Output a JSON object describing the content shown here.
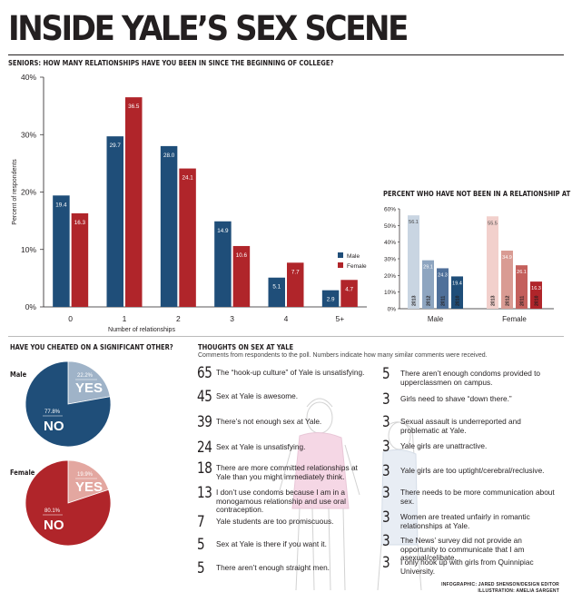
{
  "title": "INSIDE YALE’S SEX SCENE",
  "relationships_chart": {
    "heading": "SENIORS: HOW MANY RELATIONSHIPS HAVE YOU BEEN IN SINCE THE BEGINNING OF COLLEGE?",
    "legend": [
      "Male",
      "Female"
    ]
  },
  "not_in_relationship_chart": {
    "heading": "PERCENT WHO HAVE NOT BEEN IN A RELATIONSHIP AT YALE"
  },
  "cheated": {
    "heading": "HAVE YOU CHEATED ON A SIGNIFICANT OTHER?",
    "groups": [
      {
        "label": "Male",
        "yes_pct": "22.2%",
        "no_pct": "77.8%",
        "yes": "YES",
        "no": "NO"
      },
      {
        "label": "Female",
        "yes_pct": "19.9%",
        "no_pct": "80.1%",
        "yes": "YES",
        "no": "NO"
      }
    ]
  },
  "thoughts": {
    "heading": "THOUGHTS ON SEX AT YALE",
    "subheading": "Comments from respondents to the poll. Numbers indicate how many similar comments were received.",
    "left": [
      {
        "count": "65",
        "text": "The “hook-up culture” of Yale is unsatisfying."
      },
      {
        "count": "45",
        "text": "Sex at Yale is awesome."
      },
      {
        "count": "39",
        "text": "There’s not enough sex at Yale."
      },
      {
        "count": "24",
        "text": "Sex at Yale is unsatisfying."
      },
      {
        "count": "18",
        "text": "There are more committed relationships at Yale than you might immediately think."
      },
      {
        "count": "13",
        "text": "I don’t use condoms because I am in a monogamous relationship and use oral contraception."
      },
      {
        "count": "7",
        "text": "Yale students are too promiscuous."
      },
      {
        "count": "5",
        "text": "Sex at Yale is there if you want it."
      },
      {
        "count": "5",
        "text": "There aren’t enough straight men."
      }
    ],
    "right": [
      {
        "count": "5",
        "text": "There aren’t enough condoms provided to upperclassmen on campus."
      },
      {
        "count": "3",
        "text": "Girls need to shave “down there.”"
      },
      {
        "count": "3",
        "text": "Sexual assault is underreported and problematic at Yale."
      },
      {
        "count": "3",
        "text": "Yale girls are unattractive."
      },
      {
        "count": "3",
        "text": "Yale girls are too uptight/cerebral/reclusive."
      },
      {
        "count": "3",
        "text": "There needs to be more communication about sex."
      },
      {
        "count": "3",
        "text": "Women are treated unfairly in romantic relationships at Yale."
      },
      {
        "count": "3",
        "text": "The News’ survey did not provide an opportunity to communicate that I am asexual/celibate."
      },
      {
        "count": "3",
        "text": "I only hook up with girls from Quinnipiac University."
      }
    ]
  },
  "credits": {
    "line1": "INFOGRAPHIC: JARED SHENSON/DESIGN EDITOR",
    "line2": "ILLUSTRATION: AMELIA SARGENT"
  },
  "colors": {
    "male": "#1f4e79",
    "female": "#b0252a",
    "male_light": "#9fb3c8",
    "female_light": "#e3a7a0"
  },
  "chart_data": [
    {
      "type": "bar",
      "title": "SENIORS: HOW MANY RELATIONSHIPS HAVE YOU BEEN IN SINCE THE BEGINNING OF COLLEGE?",
      "xlabel": "Number of relationships",
      "ylabel": "Percent of respondents",
      "categories": [
        "0",
        "1",
        "2",
        "3",
        "4",
        "5+"
      ],
      "ylim": [
        0,
        40
      ],
      "yticks": [
        "0%",
        "10%",
        "20%",
        "30%",
        "40%"
      ],
      "series": [
        {
          "name": "Male",
          "values": [
            19.4,
            29.7,
            28.0,
            14.9,
            5.1,
            2.9
          ]
        },
        {
          "name": "Female",
          "values": [
            16.3,
            36.5,
            24.1,
            10.6,
            7.7,
            4.7
          ]
        }
      ],
      "legend": "right"
    },
    {
      "type": "bar",
      "title": "PERCENT WHO HAVE NOT BEEN IN A RELATIONSHIP AT YALE",
      "categories": [
        "Male",
        "Female"
      ],
      "ylim": [
        0,
        60
      ],
      "yticks": [
        "0%",
        "10%",
        "20%",
        "30%",
        "40%",
        "50%",
        "60%"
      ],
      "series": [
        {
          "name": "2013",
          "values": [
            56.1,
            55.5
          ]
        },
        {
          "name": "2012",
          "values": [
            29.1,
            34.9
          ]
        },
        {
          "name": "2011",
          "values": [
            24.3,
            26.1
          ]
        },
        {
          "name": "2010",
          "values": [
            19.4,
            16.3
          ]
        }
      ]
    },
    {
      "type": "pie",
      "title": "HAVE YOU CHEATED ON A SIGNIFICANT OTHER?",
      "groups": [
        {
          "name": "Male",
          "labels": [
            "YES",
            "NO"
          ],
          "values": [
            22.2,
            77.8
          ]
        },
        {
          "name": "Female",
          "labels": [
            "YES",
            "NO"
          ],
          "values": [
            19.9,
            80.1
          ]
        }
      ]
    }
  ]
}
